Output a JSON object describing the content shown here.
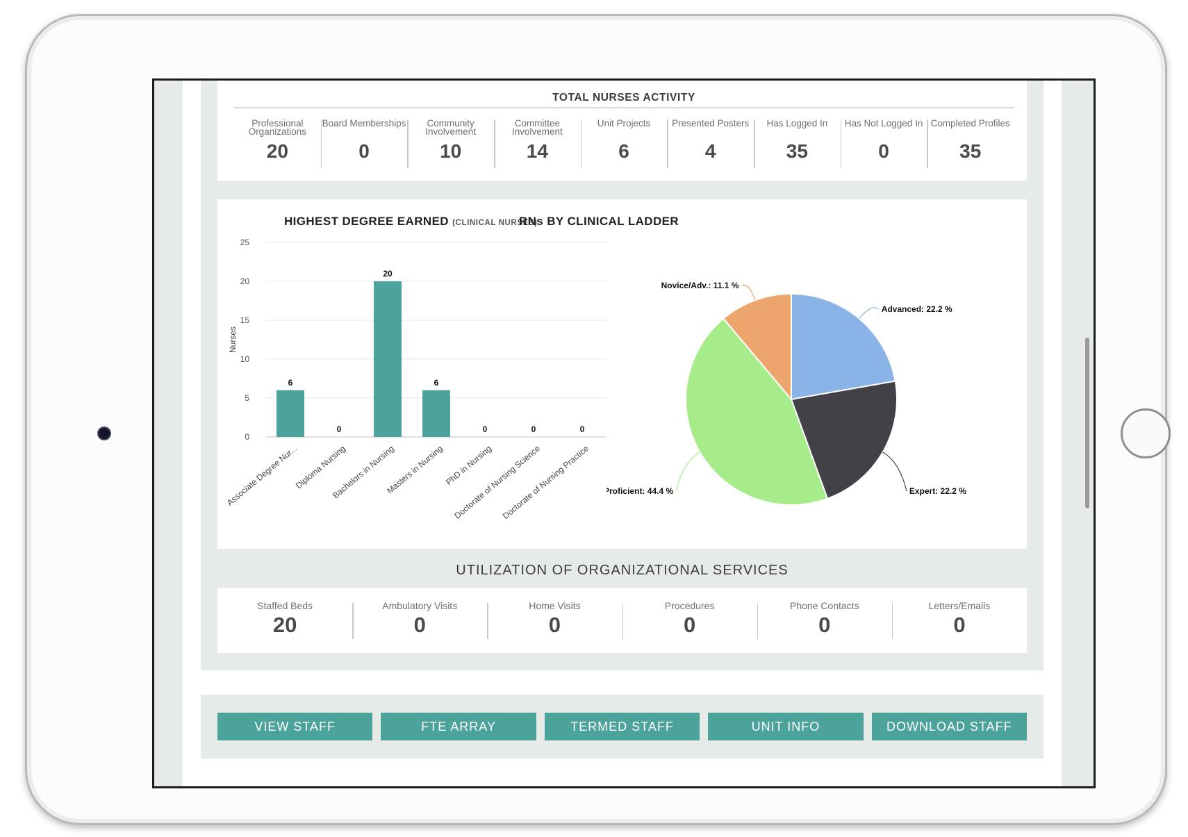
{
  "activity": {
    "title": "TOTAL NURSES ACTIVITY",
    "stats": [
      {
        "label": "Professional Organizations",
        "value": "20"
      },
      {
        "label": "Board Memberships",
        "value": "0"
      },
      {
        "label": "Community Involvement",
        "value": "10"
      },
      {
        "label": "Committee Involvement",
        "value": "14"
      },
      {
        "label": "Unit Projects",
        "value": "6"
      },
      {
        "label": "Presented Posters",
        "value": "4"
      },
      {
        "label": "Has Logged In",
        "value": "35"
      },
      {
        "label": "Has Not Logged In",
        "value": "0"
      },
      {
        "label": "Completed Profiles",
        "value": "35"
      }
    ]
  },
  "degree_chart": {
    "title": "HIGHEST DEGREE EARNED",
    "subtitle": "(CLINICAL NURSES)"
  },
  "ladder_chart": {
    "title": "RNs BY CLINICAL LADDER"
  },
  "chart_data": [
    {
      "type": "bar",
      "title": "HIGHEST DEGREE EARNED (CLINICAL NURSES)",
      "categories": [
        "Associate Degree Nur...",
        "Diploma Nursing",
        "Bachelors in Nursing",
        "Masters in Nursing",
        "PhD in Nursing",
        "Doctorate of Nursing Science",
        "Doctorate of Nursing Practice"
      ],
      "values": [
        6,
        0,
        20,
        6,
        0,
        0,
        0
      ],
      "value_labels": [
        "6",
        "0",
        "20",
        "6",
        "0",
        "0",
        "0"
      ],
      "xlabel": "",
      "ylabel": "Nurses",
      "ylim": [
        0,
        25
      ],
      "yticks": [
        "0",
        "5",
        "10",
        "15",
        "20",
        "25"
      ],
      "grid": true,
      "color": "#4ba39b"
    },
    {
      "type": "pie",
      "title": "RNs BY CLINICAL LADDER",
      "slices": [
        {
          "name": "Advanced",
          "value": 22.2,
          "label": "Advanced: 22.2 %",
          "color": "#8ab4e8"
        },
        {
          "name": "Expert",
          "value": 22.2,
          "label": "Expert: 22.2 %",
          "color": "#414147"
        },
        {
          "name": "Proficient",
          "value": 44.4,
          "label": "Proficient: 44.4 %",
          "color": "#a6ec8a"
        },
        {
          "name": "Novice/Adv.",
          "value": 11.1,
          "label": "Novice/Adv.: 11.1 %",
          "color": "#eca56b"
        }
      ]
    }
  ],
  "utilization": {
    "title": "UTILIZATION OF ORGANIZATIONAL SERVICES",
    "items": [
      {
        "label": "Staffed Beds",
        "value": "20"
      },
      {
        "label": "Ambulatory Visits",
        "value": "0"
      },
      {
        "label": "Home Visits",
        "value": "0"
      },
      {
        "label": "Procedures",
        "value": "0"
      },
      {
        "label": "Phone Contacts",
        "value": "0"
      },
      {
        "label": "Letters/Emails",
        "value": "0"
      }
    ]
  },
  "buttons": {
    "view_staff": "VIEW STAFF",
    "fte_array": "FTE ARRAY",
    "termed_staff": "TERMED STAFF",
    "unit_info": "UNIT INFO",
    "download_staff": "DOWNLOAD STAFF"
  },
  "colors": {
    "accent": "#4ba39b",
    "panel_bg": "#e7ebe8"
  }
}
